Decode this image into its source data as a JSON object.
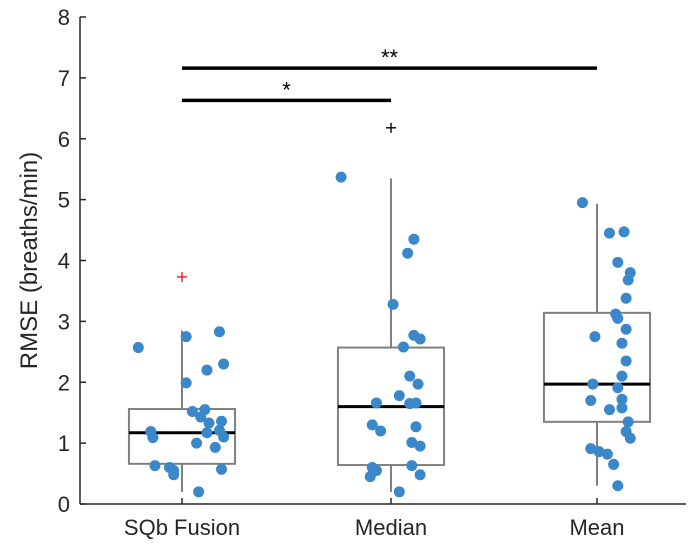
{
  "chart_data": {
    "type": "box",
    "categories": [
      "SQb Fusion",
      "Median",
      "Mean"
    ],
    "ylabel": "RMSE (breaths/min)",
    "xlabel": "",
    "ylim": [
      0,
      8
    ],
    "yticks": [
      "0",
      "1",
      "2",
      "3",
      "4",
      "5",
      "6",
      "7",
      "8"
    ],
    "grid": false,
    "colors": {
      "points": "#3a88c9",
      "box": "#808080",
      "median": "#000000",
      "outlier_fusion": "#e02020",
      "outlier": "#000000"
    },
    "boxes": [
      {
        "category": "SQb Fusion",
        "q1": 0.66,
        "median": 1.17,
        "q3": 1.56,
        "whisker_low": 0.2,
        "whisker_high": 2.85,
        "outliers": [
          3.73
        ],
        "outlier_color": "#e02020"
      },
      {
        "category": "Median",
        "q1": 0.64,
        "median": 1.6,
        "q3": 2.57,
        "whisker_low": 0.2,
        "whisker_high": 5.35,
        "outliers": [
          6.18
        ],
        "outlier_color": "#000000"
      },
      {
        "category": "Mean",
        "q1": 1.35,
        "median": 1.97,
        "q3": 3.14,
        "whisker_low": 0.3,
        "whisker_high": 4.93,
        "outliers": [],
        "outlier_color": "#000000"
      }
    ],
    "points": [
      [
        {
          "dx": -0.21,
          "y": 2.57
        },
        {
          "dx": 0.18,
          "y": 2.83
        },
        {
          "dx": 0.02,
          "y": 2.75
        },
        {
          "dx": 0.12,
          "y": 2.2
        },
        {
          "dx": 0.2,
          "y": 2.3
        },
        {
          "dx": 0.02,
          "y": 1.99
        },
        {
          "dx": 0.11,
          "y": 1.55
        },
        {
          "dx": 0.05,
          "y": 1.52
        },
        {
          "dx": 0.19,
          "y": 1.36
        },
        {
          "dx": 0.13,
          "y": 1.33
        },
        {
          "dx": 0.18,
          "y": 1.21
        },
        {
          "dx": -0.15,
          "y": 1.19
        },
        {
          "dx": 0.12,
          "y": 1.17
        },
        {
          "dx": 0.2,
          "y": 1.1
        },
        {
          "dx": -0.14,
          "y": 1.09
        },
        {
          "dx": 0.07,
          "y": 1.0
        },
        {
          "dx": 0.16,
          "y": 0.93
        },
        {
          "dx": -0.13,
          "y": 0.63
        },
        {
          "dx": -0.06,
          "y": 0.6
        },
        {
          "dx": -0.04,
          "y": 0.55
        },
        {
          "dx": 0.19,
          "y": 0.57
        },
        {
          "dx": -0.04,
          "y": 0.48
        },
        {
          "dx": 0.08,
          "y": 0.2
        },
        {
          "dx": 0.09,
          "y": 1.43
        }
      ],
      [
        {
          "dx": -0.24,
          "y": 5.37
        },
        {
          "dx": 0.11,
          "y": 4.35
        },
        {
          "dx": 0.08,
          "y": 4.12
        },
        {
          "dx": 0.01,
          "y": 3.28
        },
        {
          "dx": 0.11,
          "y": 2.77
        },
        {
          "dx": 0.14,
          "y": 2.71
        },
        {
          "dx": 0.06,
          "y": 2.58
        },
        {
          "dx": 0.09,
          "y": 2.1
        },
        {
          "dx": 0.13,
          "y": 1.97
        },
        {
          "dx": 0.04,
          "y": 1.78
        },
        {
          "dx": -0.07,
          "y": 1.66
        },
        {
          "dx": 0.09,
          "y": 1.65
        },
        {
          "dx": 0.12,
          "y": 1.66
        },
        {
          "dx": -0.09,
          "y": 1.3
        },
        {
          "dx": -0.05,
          "y": 1.2
        },
        {
          "dx": 0.1,
          "y": 1.01
        },
        {
          "dx": 0.14,
          "y": 0.95
        },
        {
          "dx": -0.09,
          "y": 0.6
        },
        {
          "dx": -0.07,
          "y": 0.55
        },
        {
          "dx": 0.1,
          "y": 0.63
        },
        {
          "dx": 0.14,
          "y": 0.48
        },
        {
          "dx": -0.1,
          "y": 0.45
        },
        {
          "dx": 0.04,
          "y": 0.2
        },
        {
          "dx": 0.12,
          "y": 1.27
        }
      ],
      [
        {
          "dx": -0.07,
          "y": 4.95
        },
        {
          "dx": 0.06,
          "y": 4.45
        },
        {
          "dx": 0.13,
          "y": 4.47
        },
        {
          "dx": 0.1,
          "y": 3.97
        },
        {
          "dx": 0.16,
          "y": 3.8
        },
        {
          "dx": 0.15,
          "y": 3.68
        },
        {
          "dx": 0.14,
          "y": 3.38
        },
        {
          "dx": 0.09,
          "y": 3.12
        },
        {
          "dx": 0.1,
          "y": 3.05
        },
        {
          "dx": 0.14,
          "y": 2.87
        },
        {
          "dx": -0.01,
          "y": 2.75
        },
        {
          "dx": 0.12,
          "y": 2.64
        },
        {
          "dx": 0.14,
          "y": 2.35
        },
        {
          "dx": 0.12,
          "y": 2.1
        },
        {
          "dx": -0.02,
          "y": 1.97
        },
        {
          "dx": 0.1,
          "y": 1.91
        },
        {
          "dx": -0.03,
          "y": 1.7
        },
        {
          "dx": 0.12,
          "y": 1.72
        },
        {
          "dx": 0.06,
          "y": 1.55
        },
        {
          "dx": 0.12,
          "y": 1.58
        },
        {
          "dx": 0.15,
          "y": 1.35
        },
        {
          "dx": 0.14,
          "y": 1.19
        },
        {
          "dx": 0.16,
          "y": 1.08
        },
        {
          "dx": -0.03,
          "y": 0.91
        },
        {
          "dx": 0.01,
          "y": 0.86
        },
        {
          "dx": 0.05,
          "y": 0.82
        },
        {
          "dx": 0.08,
          "y": 0.65
        },
        {
          "dx": 0.1,
          "y": 0.3
        }
      ]
    ],
    "significance": [
      {
        "from": 0,
        "to": 1,
        "y": 6.63,
        "label": "*"
      },
      {
        "from": 0,
        "to": 2,
        "y": 7.16,
        "label": "**"
      }
    ]
  }
}
